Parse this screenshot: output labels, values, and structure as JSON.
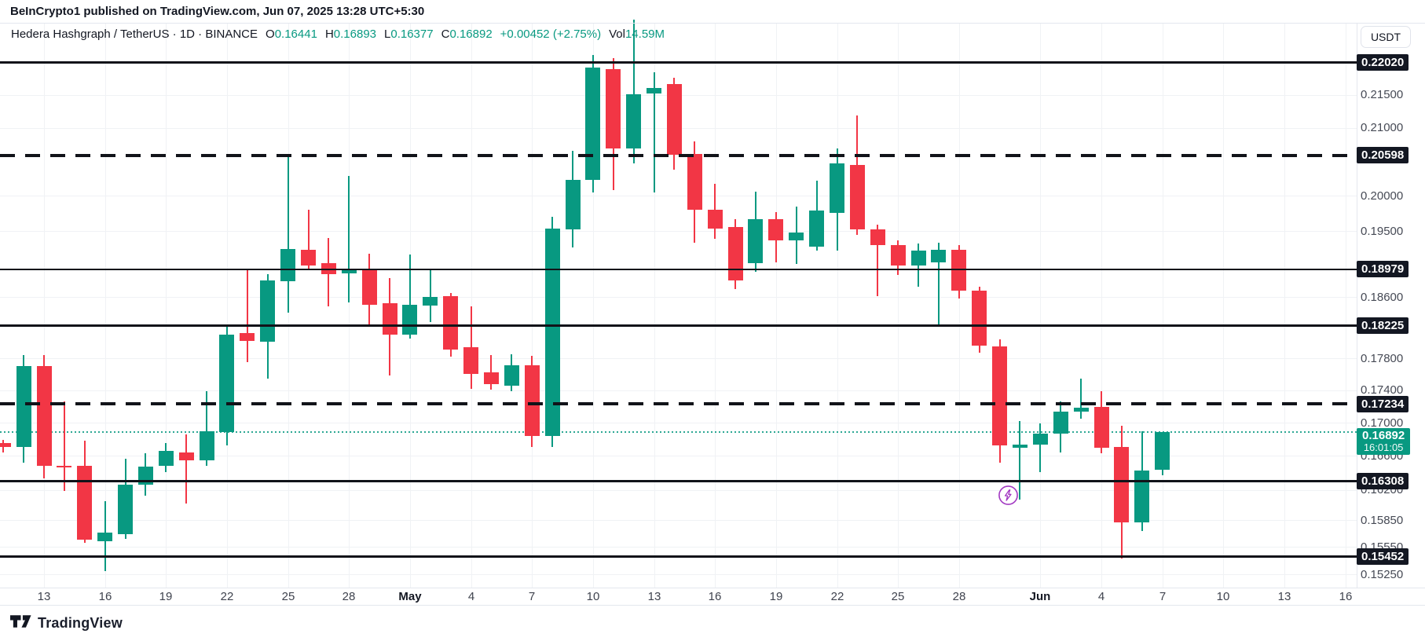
{
  "attribution": "BeInCrypto1 published on TradingView.com, Jun 07, 2025 13:28 UTC+5:30",
  "header": {
    "title": "Hedera Hashgraph / TetherUS · 1D · BINANCE",
    "ohlc": [
      {
        "label": "O",
        "value": "0.16441"
      },
      {
        "label": "H",
        "value": "0.16893"
      },
      {
        "label": "L",
        "value": "0.16377"
      },
      {
        "label": "C",
        "value": "0.16892"
      }
    ],
    "change": "+0.00452 (+2.75%)",
    "vol_label": "Vol",
    "vol_value": "14.59M"
  },
  "price_scale": {
    "currency_button": "USDT",
    "labels": [
      {
        "text": "0.21500",
        "value": 0.215
      },
      {
        "text": "0.21000",
        "value": 0.21
      },
      {
        "text": "0.20000",
        "value": 0.2
      },
      {
        "text": "0.19500",
        "value": 0.195
      },
      {
        "text": "0.18600",
        "value": 0.186
      },
      {
        "text": "0.17800",
        "value": 0.178
      },
      {
        "text": "0.17400",
        "value": 0.174
      },
      {
        "text": "0.17000",
        "value": 0.17
      },
      {
        "text": "0.16600",
        "value": 0.166
      },
      {
        "text": "0.16200",
        "value": 0.162
      },
      {
        "text": "0.15850",
        "value": 0.1585
      },
      {
        "text": "0.15550",
        "value": 0.1555
      },
      {
        "text": "0.15250",
        "value": 0.1525
      }
    ],
    "current": {
      "price": "0.16892",
      "countdown": "16:01:05"
    }
  },
  "time_axis": {
    "labels": [
      {
        "text": "13",
        "day": 2
      },
      {
        "text": "16",
        "day": 5
      },
      {
        "text": "19",
        "day": 8
      },
      {
        "text": "22",
        "day": 11
      },
      {
        "text": "25",
        "day": 14
      },
      {
        "text": "28",
        "day": 17
      },
      {
        "text": "May",
        "day": 20,
        "bold": true
      },
      {
        "text": "4",
        "day": 23
      },
      {
        "text": "7",
        "day": 26
      },
      {
        "text": "10",
        "day": 29
      },
      {
        "text": "13",
        "day": 32
      },
      {
        "text": "16",
        "day": 35
      },
      {
        "text": "19",
        "day": 38
      },
      {
        "text": "22",
        "day": 41
      },
      {
        "text": "25",
        "day": 44
      },
      {
        "text": "28",
        "day": 47
      },
      {
        "text": "Jun",
        "day": 51,
        "bold": true
      },
      {
        "text": "4",
        "day": 54
      },
      {
        "text": "7",
        "day": 57
      },
      {
        "text": "10",
        "day": 60
      },
      {
        "text": "13",
        "day": 63
      },
      {
        "text": "16",
        "day": 66
      }
    ]
  },
  "watermark": {
    "text": "TradingView"
  },
  "colors": {
    "up": "#089981",
    "down": "#f23645",
    "badge_bg": "#131722",
    "text_dark": "#131722",
    "text_gray": "#464a55",
    "grid": "#f0f2f5",
    "border": "#e4e7ee",
    "flash": "#a238c2"
  },
  "chart_data": {
    "type": "candlestick",
    "title": "Hedera Hashgraph / TetherUS, 1D, BINANCE",
    "scale": "logarithmic",
    "interval": "1D",
    "visible_price_range": [
      0.1525,
      0.2275
    ],
    "visible_date_range": [
      "Apr 11",
      "Jun 16"
    ],
    "last_price": 0.16892,
    "levels": [
      {
        "label": "0.22020",
        "price": 0.2202,
        "style": "solid",
        "weight": 3
      },
      {
        "label": "0.20598",
        "price": 0.20598,
        "style": "dashed",
        "weight": 4
      },
      {
        "label": "0.18979",
        "price": 0.18979,
        "style": "solid",
        "weight": 2
      },
      {
        "label": "0.18225",
        "price": 0.18225,
        "style": "solid",
        "weight": 3
      },
      {
        "label": "0.17234",
        "price": 0.17234,
        "style": "dashed",
        "weight": 4
      },
      {
        "label": "0.16308",
        "price": 0.16308,
        "style": "solid",
        "weight": 3
      },
      {
        "label": "0.15452",
        "price": 0.15452,
        "style": "solid",
        "weight": 3
      }
    ],
    "candles": [
      {
        "date": "Apr 11",
        "o": 0.1676,
        "h": 0.168,
        "l": 0.1665,
        "c": 0.1671
      },
      {
        "date": "Apr 12",
        "o": 0.1671,
        "h": 0.1785,
        "l": 0.1652,
        "c": 0.1771
      },
      {
        "date": "Apr 13",
        "o": 0.1771,
        "h": 0.1785,
        "l": 0.1634,
        "c": 0.1649
      },
      {
        "date": "Apr 14",
        "o": 0.1649,
        "h": 0.1727,
        "l": 0.1619,
        "c": 0.1647
      },
      {
        "date": "Apr 15",
        "o": 0.1649,
        "h": 0.1679,
        "l": 0.156,
        "c": 0.1564
      },
      {
        "date": "Apr 16",
        "o": 0.1562,
        "h": 0.1607,
        "l": 0.1529,
        "c": 0.1572
      },
      {
        "date": "Apr 17",
        "o": 0.157,
        "h": 0.1657,
        "l": 0.1565,
        "c": 0.1627
      },
      {
        "date": "Apr 18",
        "o": 0.1627,
        "h": 0.1664,
        "l": 0.1614,
        "c": 0.1648
      },
      {
        "date": "Apr 19",
        "o": 0.1649,
        "h": 0.1676,
        "l": 0.1641,
        "c": 0.1666
      },
      {
        "date": "Apr 20",
        "o": 0.1665,
        "h": 0.1686,
        "l": 0.1605,
        "c": 0.1655
      },
      {
        "date": "Apr 21",
        "o": 0.1655,
        "h": 0.1739,
        "l": 0.1649,
        "c": 0.169
      },
      {
        "date": "Apr 22",
        "o": 0.1689,
        "h": 0.1822,
        "l": 0.1673,
        "c": 0.1811
      },
      {
        "date": "Apr 23",
        "o": 0.1813,
        "h": 0.1898,
        "l": 0.1776,
        "c": 0.1803
      },
      {
        "date": "Apr 24",
        "o": 0.1802,
        "h": 0.1892,
        "l": 0.1755,
        "c": 0.1883
      },
      {
        "date": "Apr 25",
        "o": 0.1882,
        "h": 0.2059,
        "l": 0.184,
        "c": 0.1926
      },
      {
        "date": "Apr 26",
        "o": 0.1925,
        "h": 0.1981,
        "l": 0.1899,
        "c": 0.1903
      },
      {
        "date": "Apr 27",
        "o": 0.1906,
        "h": 0.1941,
        "l": 0.1848,
        "c": 0.1892
      },
      {
        "date": "Apr 28",
        "o": 0.1893,
        "h": 0.2029,
        "l": 0.1853,
        "c": 0.1899
      },
      {
        "date": "Apr 29",
        "o": 0.1898,
        "h": 0.1919,
        "l": 0.1822,
        "c": 0.185
      },
      {
        "date": "Apr 30",
        "o": 0.1852,
        "h": 0.1886,
        "l": 0.1759,
        "c": 0.1811
      },
      {
        "date": "May 1",
        "o": 0.1811,
        "h": 0.1918,
        "l": 0.1806,
        "c": 0.185
      },
      {
        "date": "May 2",
        "o": 0.1849,
        "h": 0.1897,
        "l": 0.1828,
        "c": 0.1861
      },
      {
        "date": "May 3",
        "o": 0.1862,
        "h": 0.1866,
        "l": 0.1783,
        "c": 0.1792
      },
      {
        "date": "May 4",
        "o": 0.1795,
        "h": 0.1848,
        "l": 0.1742,
        "c": 0.1761
      },
      {
        "date": "May 5",
        "o": 0.1763,
        "h": 0.1785,
        "l": 0.1741,
        "c": 0.1748
      },
      {
        "date": "May 6",
        "o": 0.1746,
        "h": 0.1786,
        "l": 0.1739,
        "c": 0.1772
      },
      {
        "date": "May 7",
        "o": 0.1772,
        "h": 0.1784,
        "l": 0.1671,
        "c": 0.1684
      },
      {
        "date": "May 8",
        "o": 0.1684,
        "h": 0.1971,
        "l": 0.1671,
        "c": 0.1954
      },
      {
        "date": "May 9",
        "o": 0.1953,
        "h": 0.2066,
        "l": 0.1928,
        "c": 0.2024
      },
      {
        "date": "May 10",
        "o": 0.2024,
        "h": 0.2213,
        "l": 0.2006,
        "c": 0.2193
      },
      {
        "date": "May 11",
        "o": 0.2191,
        "h": 0.2208,
        "l": 0.2009,
        "c": 0.207
      },
      {
        "date": "May 12",
        "o": 0.207,
        "h": 0.227,
        "l": 0.2048,
        "c": 0.2152
      },
      {
        "date": "May 13",
        "o": 0.2153,
        "h": 0.2186,
        "l": 0.2006,
        "c": 0.2162
      },
      {
        "date": "May 14",
        "o": 0.2167,
        "h": 0.2177,
        "l": 0.2039,
        "c": 0.206
      },
      {
        "date": "May 15",
        "o": 0.2062,
        "h": 0.208,
        "l": 0.1935,
        "c": 0.1981
      },
      {
        "date": "May 16",
        "o": 0.1981,
        "h": 0.2018,
        "l": 0.194,
        "c": 0.1954
      },
      {
        "date": "May 17",
        "o": 0.1956,
        "h": 0.1968,
        "l": 0.1871,
        "c": 0.1883
      },
      {
        "date": "May 18",
        "o": 0.1906,
        "h": 0.2007,
        "l": 0.1895,
        "c": 0.1968
      },
      {
        "date": "May 19",
        "o": 0.1968,
        "h": 0.1978,
        "l": 0.1907,
        "c": 0.1938
      },
      {
        "date": "May 20",
        "o": 0.1938,
        "h": 0.1985,
        "l": 0.1905,
        "c": 0.1949
      },
      {
        "date": "May 21",
        "o": 0.1929,
        "h": 0.2022,
        "l": 0.1924,
        "c": 0.198
      },
      {
        "date": "May 22",
        "o": 0.1976,
        "h": 0.207,
        "l": 0.1924,
        "c": 0.2048
      },
      {
        "date": "May 23",
        "o": 0.2046,
        "h": 0.2119,
        "l": 0.1945,
        "c": 0.1953
      },
      {
        "date": "May 24",
        "o": 0.1953,
        "h": 0.196,
        "l": 0.1862,
        "c": 0.1931
      },
      {
        "date": "May 25",
        "o": 0.1931,
        "h": 0.1938,
        "l": 0.189,
        "c": 0.1903
      },
      {
        "date": "May 26",
        "o": 0.1903,
        "h": 0.1934,
        "l": 0.1875,
        "c": 0.1924
      },
      {
        "date": "May 27",
        "o": 0.1908,
        "h": 0.1935,
        "l": 0.1823,
        "c": 0.1925
      },
      {
        "date": "May 28",
        "o": 0.1925,
        "h": 0.1931,
        "l": 0.1859,
        "c": 0.1869
      },
      {
        "date": "May 29",
        "o": 0.1869,
        "h": 0.1875,
        "l": 0.1788,
        "c": 0.1797
      },
      {
        "date": "May 30",
        "o": 0.1796,
        "h": 0.1805,
        "l": 0.1652,
        "c": 0.1673
      },
      {
        "date": "May 31",
        "o": 0.167,
        "h": 0.1702,
        "l": 0.1609,
        "c": 0.1674
      },
      {
        "date": "Jun 1",
        "o": 0.1674,
        "h": 0.17,
        "l": 0.1641,
        "c": 0.1687
      },
      {
        "date": "Jun 2",
        "o": 0.1687,
        "h": 0.1727,
        "l": 0.1665,
        "c": 0.1714
      },
      {
        "date": "Jun 3",
        "o": 0.1714,
        "h": 0.1755,
        "l": 0.1705,
        "c": 0.1719
      },
      {
        "date": "Jun 4",
        "o": 0.172,
        "h": 0.1739,
        "l": 0.1664,
        "c": 0.167
      },
      {
        "date": "Jun 5",
        "o": 0.1671,
        "h": 0.1697,
        "l": 0.1543,
        "c": 0.1583
      },
      {
        "date": "Jun 6",
        "o": 0.1583,
        "h": 0.169,
        "l": 0.1573,
        "c": 0.1643
      },
      {
        "date": "Jun 7",
        "o": 0.16441,
        "h": 0.16893,
        "l": 0.16377,
        "c": 0.16892
      }
    ]
  }
}
